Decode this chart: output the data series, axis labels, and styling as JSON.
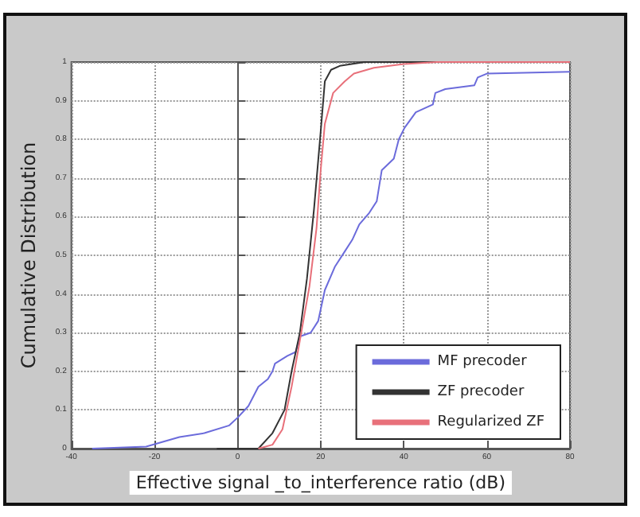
{
  "chart_data": {
    "type": "line",
    "xlabel": "Effective signal _to_interference ratio (dB)",
    "ylabel": "Cumulative Distribution",
    "xlim": [
      -40,
      80
    ],
    "xticks": [
      -40,
      -20,
      0,
      20,
      40,
      60,
      80
    ],
    "ylim": [
      0,
      1
    ],
    "yticks": [
      0,
      0.1,
      0.2,
      0.3,
      0.4,
      0.5,
      0.6,
      0.7,
      0.8,
      0.9,
      1
    ],
    "grid": true,
    "legend": "bottom right",
    "marker": "none",
    "line_style": "solid",
    "series": [
      {
        "name": "MF precoder",
        "color": "#6b6bdb",
        "x": [
          -35,
          -22,
          -14,
          -8,
          -2,
          0,
          2.6,
          5,
          7.3,
          8.4,
          9,
          12,
          14,
          15,
          17.6,
          19.4,
          21,
          23.4,
          25.8,
          27.6,
          29.3,
          31.7,
          33.5,
          34.7,
          37.6,
          38.8,
          40.2,
          42.9,
          47,
          47.6,
          50,
          57,
          57.8,
          60,
          80
        ],
        "values": [
          0,
          0.005,
          0.03,
          0.04,
          0.06,
          0.08,
          0.11,
          0.16,
          0.18,
          0.2,
          0.22,
          0.24,
          0.25,
          0.29,
          0.3,
          0.33,
          0.41,
          0.47,
          0.51,
          0.54,
          0.58,
          0.61,
          0.64,
          0.72,
          0.75,
          0.8,
          0.83,
          0.87,
          0.89,
          0.92,
          0.93,
          0.94,
          0.96,
          0.97,
          0.975
        ]
      },
      {
        "name": "ZF precoder",
        "color": "#333333",
        "x": [
          -5,
          5,
          8.4,
          11.3,
          13,
          15,
          16.7,
          18.4,
          20,
          21,
          22.5,
          24.6,
          30.6,
          80
        ],
        "values": [
          0,
          0,
          0.04,
          0.1,
          0.2,
          0.3,
          0.44,
          0.62,
          0.82,
          0.95,
          0.98,
          0.99,
          1,
          1
        ]
      },
      {
        "name": "Regularized ZF",
        "color": "#e8707a",
        "x": [
          5,
          8.4,
          10.8,
          13,
          15,
          17.3,
          19,
          20,
          21,
          23,
          25.8,
          28,
          32.8,
          40,
          48,
          80
        ],
        "values": [
          0,
          0.01,
          0.05,
          0.16,
          0.28,
          0.42,
          0.57,
          0.72,
          0.84,
          0.92,
          0.95,
          0.97,
          0.985,
          0.995,
          1,
          1
        ]
      }
    ]
  }
}
